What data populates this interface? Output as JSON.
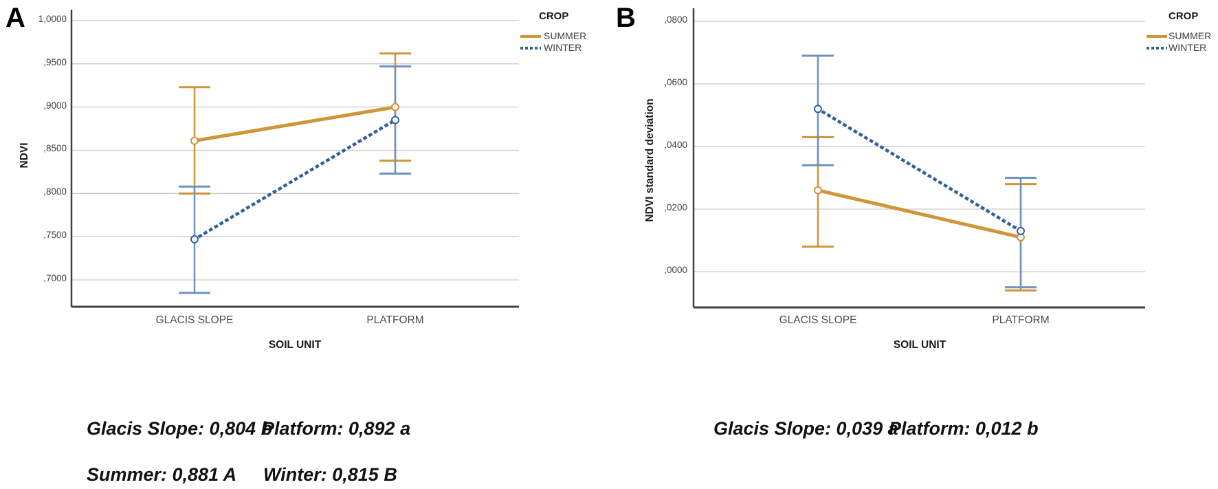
{
  "colors": {
    "summer": "#d0953a",
    "winter": "#2f5f9e",
    "winter_error": "#6c92c0",
    "grid": "#c9c9c9",
    "axis": "#3f3f3f"
  },
  "panels": [
    {
      "label": "A",
      "legend": {
        "title": "CROP",
        "items": [
          "SUMMER",
          "WINTER"
        ]
      },
      "y_title": "NDVI",
      "x_title": "SOIL UNIT",
      "y_ticks": [
        "1,0000",
        ",9500",
        ",9000",
        ",8500",
        ",8000",
        ",7500",
        ",7000"
      ],
      "x_ticks": [
        "GLACIS SLOPE",
        "PLATFORM"
      ],
      "annotations": {
        "line1_left": "Glacis Slope: 0,804 b",
        "line1_right": "Platform: 0,892 a",
        "line2_left": "Summer: 0,881 A",
        "line2_right": "Winter: 0,815 B"
      }
    },
    {
      "label": "B",
      "legend": {
        "title": "CROP",
        "items": [
          "SUMMER",
          "WINTER"
        ]
      },
      "y_title": "NDVI standard deviation",
      "x_title": "SOIL UNIT",
      "y_ticks": [
        ",0800",
        ",0600",
        ",0400",
        ",0200",
        ",0000"
      ],
      "x_ticks": [
        "GLACIS SLOPE",
        "PLATFORM"
      ],
      "annotations": {
        "line1_left": "Glacis Slope: 0,039 a",
        "line1_right": "Platform: 0,012 b"
      }
    }
  ],
  "chart_data": [
    {
      "type": "line",
      "title": "",
      "categories": [
        "GLACIS SLOPE",
        "PLATFORM"
      ],
      "xlabel": "SOIL UNIT",
      "ylabel": "NDVI",
      "ylim": [
        0.7,
        1.0
      ],
      "yticks": [
        1.0,
        0.95,
        0.9,
        0.85,
        0.8,
        0.75,
        0.7
      ],
      "grid": true,
      "legend_position": "right",
      "legend_title": "CROP",
      "series": [
        {
          "name": "SUMMER",
          "style": "solid",
          "color": "#d0953a",
          "values": [
            0.861,
            0.9
          ],
          "error_low": [
            0.8,
            0.838
          ],
          "error_high": [
            0.923,
            0.962
          ]
        },
        {
          "name": "WINTER",
          "style": "dotted",
          "color": "#2f5f9e",
          "error_color": "#6c92c0",
          "values": [
            0.747,
            0.885
          ],
          "error_low": [
            0.685,
            0.823
          ],
          "error_high": [
            0.808,
            0.947
          ]
        }
      ],
      "annotations": [
        "Glacis Slope: 0,804 b",
        "Platform: 0,892 a",
        "Summer: 0,881 A",
        "Winter: 0,815 B"
      ]
    },
    {
      "type": "line",
      "title": "",
      "categories": [
        "GLACIS SLOPE",
        "PLATFORM"
      ],
      "xlabel": "SOIL UNIT",
      "ylabel": "NDVI standard deviation",
      "ylim": [
        -0.011,
        0.084
      ],
      "yticks": [
        0.08,
        0.06,
        0.04,
        0.02,
        0.0
      ],
      "grid": true,
      "legend_position": "right",
      "legend_title": "CROP",
      "series": [
        {
          "name": "SUMMER",
          "style": "solid",
          "color": "#d0953a",
          "values": [
            0.026,
            0.011
          ],
          "error_low": [
            0.008,
            -0.006
          ],
          "error_high": [
            0.043,
            0.028
          ]
        },
        {
          "name": "WINTER",
          "style": "dotted",
          "color": "#2f5f9e",
          "error_color": "#6c92c0",
          "values": [
            0.052,
            0.013
          ],
          "error_low": [
            0.034,
            -0.005
          ],
          "error_high": [
            0.069,
            0.03
          ]
        }
      ],
      "annotations": [
        "Glacis Slope: 0,039 a",
        "Platform: 0,012 b"
      ]
    }
  ]
}
